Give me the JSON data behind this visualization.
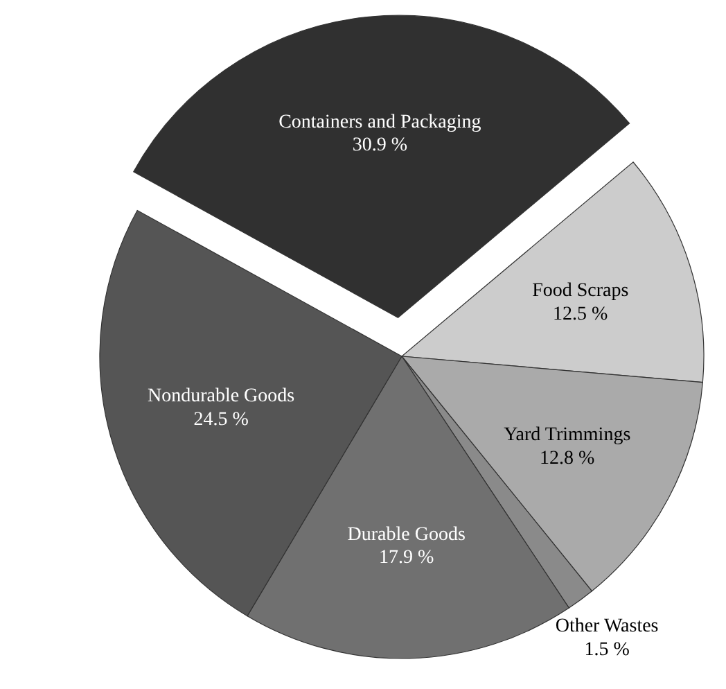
{
  "chart_data": {
    "type": "pie",
    "categories": [
      "Food Scraps",
      "Yard Trimmings",
      "Other Wastes",
      "Durable Goods",
      "Nondurable Goods",
      "Containers and Packaging"
    ],
    "values": [
      12.5,
      12.8,
      1.5,
      17.9,
      24.5,
      30.9
    ],
    "value_labels": [
      "12.5 %",
      "12.8 %",
      "1.5 %",
      "17.9 %",
      "24.5 %",
      "30.9 %"
    ],
    "colors": [
      "#cccccc",
      "#aaaaaa",
      "#8a8a8a",
      "#707070",
      "#555555",
      "#303030"
    ],
    "legend": false
  }
}
